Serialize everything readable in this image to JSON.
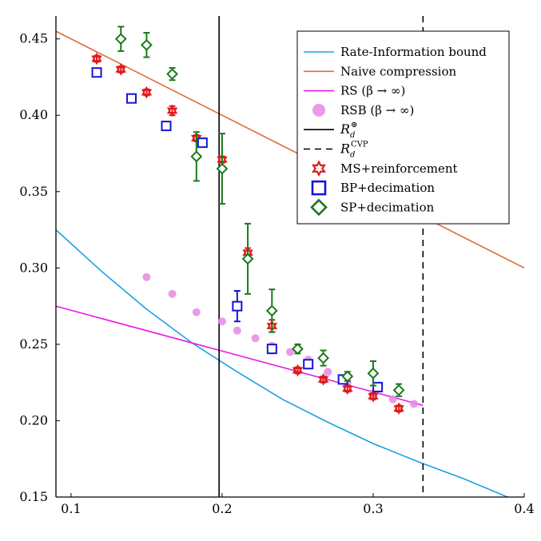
{
  "chart_data": {
    "type": "scatter",
    "xlim": [
      0.09,
      0.4
    ],
    "ylim": [
      0.15,
      0.465
    ],
    "x_ticks": [
      0.1,
      0.2,
      0.3,
      0.4
    ],
    "x_tick_labels": [
      "0.1",
      "0.2",
      "0.3",
      "0.4"
    ],
    "y_ticks": [
      0.15,
      0.2,
      0.25,
      0.3,
      0.35,
      0.4,
      0.45
    ],
    "y_tick_labels": [
      "0.15",
      "0.20",
      "0.25",
      "0.30",
      "0.35",
      "0.40",
      "0.45"
    ],
    "grid": false,
    "legend_position": "top-right",
    "lines": [
      {
        "name": "Rate-Information bound",
        "color": "#1aa0e6",
        "x": [
          0.09,
          0.12,
          0.15,
          0.18,
          0.21,
          0.24,
          0.27,
          0.3,
          0.33,
          0.36,
          0.389
        ],
        "y": [
          0.325,
          0.298,
          0.273,
          0.251,
          0.232,
          0.214,
          0.199,
          0.185,
          0.173,
          0.162,
          0.15
        ]
      },
      {
        "name": "Naive compression",
        "color": "#e06c3c",
        "x": [
          0.09,
          0.4
        ],
        "y": [
          0.455,
          0.3
        ]
      },
      {
        "name": "RS (β → ∞)",
        "color": "#e61ae6",
        "x": [
          0.09,
          0.333
        ],
        "y": [
          0.275,
          0.21
        ]
      }
    ],
    "vlines": [
      {
        "name": "R_d^⊕",
        "x": 0.198,
        "style": "solid",
        "color": "#000000"
      },
      {
        "name": "R_d^CVP",
        "x": 0.333,
        "style": "dashed",
        "color": "#000000"
      }
    ],
    "series": [
      {
        "name": "RSB (β → ∞)",
        "marker": "circle",
        "color": "#e58ae6",
        "x": [
          0.15,
          0.167,
          0.183,
          0.2,
          0.21,
          0.222,
          0.233,
          0.245,
          0.257,
          0.27,
          0.283,
          0.3,
          0.313,
          0.327
        ],
        "y": [
          0.294,
          0.283,
          0.271,
          0.265,
          0.259,
          0.254,
          0.249,
          0.245,
          0.24,
          0.232,
          0.225,
          0.218,
          0.214,
          0.211
        ]
      },
      {
        "name": "MS+reinforcement",
        "marker": "star",
        "color": "#e01b1b",
        "x": [
          0.117,
          0.133,
          0.15,
          0.167,
          0.183,
          0.2,
          0.217,
          0.233,
          0.25,
          0.267,
          0.283,
          0.3,
          0.317
        ],
        "y": [
          0.437,
          0.43,
          0.415,
          0.403,
          0.385,
          0.371,
          0.31,
          0.262,
          0.233,
          0.227,
          0.221,
          0.216,
          0.208
        ],
        "err": [
          0.002,
          0.002,
          0.002,
          0.003,
          0.002,
          0.002,
          0.003,
          0.004,
          0.002,
          0.002,
          0.002,
          0.002,
          0.002
        ]
      },
      {
        "name": "BP+decimation",
        "marker": "square",
        "color": "#1515d8",
        "x": [
          0.117,
          0.14,
          0.163,
          0.187,
          0.21,
          0.233,
          0.257,
          0.28,
          0.303
        ],
        "y": [
          0.428,
          0.411,
          0.393,
          0.382,
          0.275,
          0.247,
          0.237,
          0.227,
          0.222
        ],
        "err": [
          0,
          0,
          0,
          0,
          0.01,
          0,
          0,
          0,
          0
        ]
      },
      {
        "name": "SP+decimation",
        "marker": "diamond",
        "color": "#1a7a1a",
        "x": [
          0.133,
          0.15,
          0.167,
          0.183,
          0.2,
          0.217,
          0.233,
          0.25,
          0.267,
          0.283,
          0.3,
          0.317
        ],
        "y": [
          0.45,
          0.446,
          0.427,
          0.373,
          0.365,
          0.306,
          0.272,
          0.247,
          0.241,
          0.229,
          0.231,
          0.22
        ],
        "err": [
          0.008,
          0.008,
          0.004,
          0.016,
          0.023,
          0.023,
          0.014,
          0.003,
          0.005,
          0.003,
          0.008,
          0.004
        ]
      }
    ],
    "legend": [
      {
        "key": "ri",
        "label": "Rate-Information bound"
      },
      {
        "key": "naive",
        "label": "Naive compression"
      },
      {
        "key": "rs",
        "label": "RS (β → ∞)"
      },
      {
        "key": "rsb",
        "label": "RSB (β → ∞)"
      },
      {
        "key": "rdplus",
        "label": "R",
        "sub": "d",
        "sup": "⊕"
      },
      {
        "key": "rdcvp",
        "label": "R",
        "sub": "d",
        "sup": "CVP"
      },
      {
        "key": "ms",
        "label": "MS+reinforcement"
      },
      {
        "key": "bp",
        "label": "BP+decimation"
      },
      {
        "key": "sp",
        "label": "SP+decimation"
      }
    ]
  }
}
